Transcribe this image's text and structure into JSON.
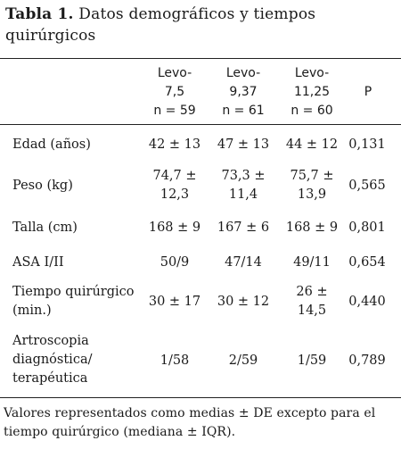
{
  "caption": {
    "label": "Tabla 1.",
    "text": "Datos demográficos y tiempos quirúrgicos"
  },
  "table": {
    "headers": {
      "group1": [
        "Levo-",
        "7,5",
        "n = 59"
      ],
      "group2": [
        "Levo-",
        "9,37",
        "n = 61"
      ],
      "group3": [
        "Levo-",
        "11,25",
        "n = 60"
      ],
      "p": "P"
    },
    "rows": [
      {
        "label": "Edad (años)",
        "g1": "42 ± 13",
        "g2": "47 ± 13",
        "g3": "44 ± 12",
        "p": "0,131"
      },
      {
        "label": "Peso (kg)",
        "g1": "74,7 ± 12,3",
        "g2": "73,3 ± 11,4",
        "g3": "75,7 ± 13,9",
        "p": "0,565"
      },
      {
        "label": "Talla (cm)",
        "g1": "168 ± 9",
        "g2": "167 ± 6",
        "g3": "168 ± 9",
        "p": "0,801"
      },
      {
        "label": "ASA I/II",
        "g1": "50/9",
        "g2": "47/14",
        "g3": "49/11",
        "p": "0,654"
      },
      {
        "label": "Tiempo quirúrgico (min.)",
        "g1": "30 ± 17",
        "g2": "30 ± 12",
        "g3": "26 ± 14,5",
        "p": "0,440"
      },
      {
        "label": "Artroscopia diagnóstica/ terapéutica",
        "g1": "1/58",
        "g2": "2/59",
        "g3": "1/59",
        "p": "0,789"
      }
    ]
  },
  "footnote": "Valores representados como medias ± DE excepto para el tiempo quirúrgico (mediana ± IQR)."
}
